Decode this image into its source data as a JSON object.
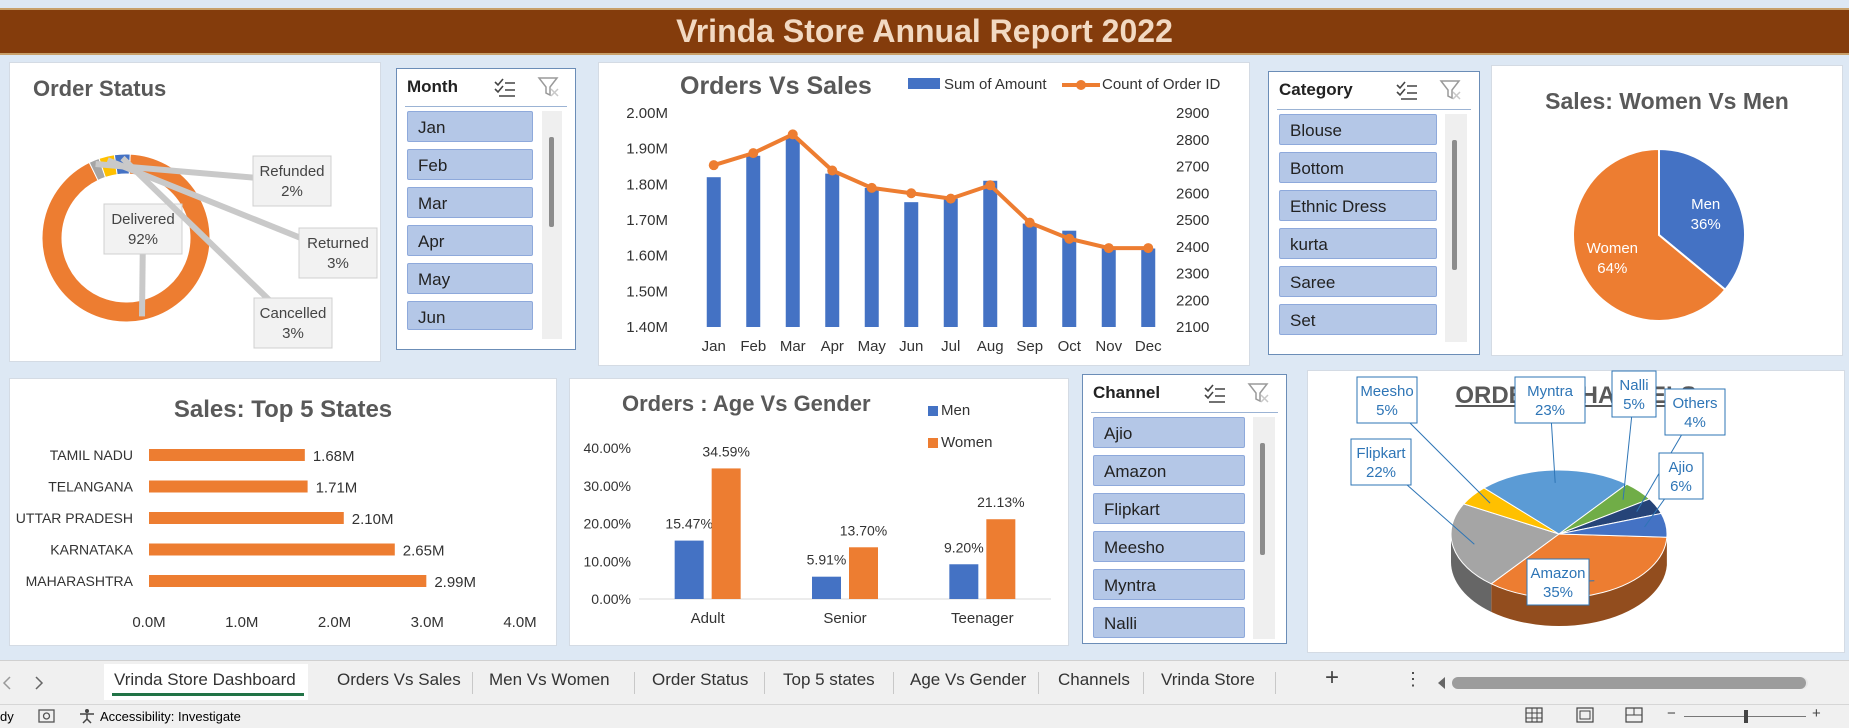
{
  "header": {
    "title": "Vrinda Store Annual Report 2022"
  },
  "order_status": {
    "title": "Order Status",
    "chart_data": {
      "type": "pie",
      "title": "Order Status",
      "labels": [
        "Delivered",
        "Refunded",
        "Returned",
        "Cancelled"
      ],
      "values": [
        92,
        2,
        3,
        3
      ],
      "value_labels": [
        "92%",
        "2%",
        "3%",
        "3%"
      ],
      "colors": [
        "#ed7d31",
        "#a5a5a5",
        "#ffc000",
        "#4472c4"
      ]
    }
  },
  "month_slicer": {
    "title": "Month",
    "items": [
      "Jan",
      "Feb",
      "Mar",
      "Apr",
      "May",
      "Jun"
    ]
  },
  "orders_vs_sales": {
    "title": "Orders Vs Sales",
    "legend": {
      "bar": "Sum of Amount",
      "line": "Count of Order ID"
    },
    "left_ticks": [
      "1.40M",
      "1.50M",
      "1.60M",
      "1.70M",
      "1.80M",
      "1.90M",
      "2.00M"
    ],
    "right_ticks": [
      "2100",
      "2200",
      "2300",
      "2400",
      "2500",
      "2600",
      "2700",
      "2800",
      "2900"
    ],
    "chart_data": {
      "type": "bar",
      "title": "Orders Vs Sales",
      "categories": [
        "Jan",
        "Feb",
        "Mar",
        "Apr",
        "May",
        "Jun",
        "Jul",
        "Aug",
        "Sep",
        "Oct",
        "Nov",
        "Dec"
      ],
      "series": [
        {
          "name": "Sum of Amount",
          "type": "bar",
          "axis": "left",
          "values": [
            1.82,
            1.88,
            1.93,
            1.83,
            1.79,
            1.75,
            1.76,
            1.81,
            1.69,
            1.67,
            1.62,
            1.62
          ]
        },
        {
          "name": "Count of Order ID",
          "type": "line",
          "axis": "right",
          "values": [
            2705,
            2750,
            2820,
            2685,
            2620,
            2600,
            2580,
            2630,
            2490,
            2430,
            2395,
            2395
          ]
        }
      ],
      "ylim_left": [
        1.4,
        2.0
      ],
      "ylim_right": [
        2100,
        2900
      ]
    }
  },
  "category_slicer": {
    "title": "Category",
    "items": [
      "Blouse",
      "Bottom",
      "Ethnic Dress",
      "kurta",
      "Saree",
      "Set"
    ]
  },
  "women_vs_men": {
    "title": "Sales: Women Vs Men",
    "chart_data": {
      "type": "pie",
      "title": "Sales: Women Vs Men",
      "labels": [
        "Men",
        "Women"
      ],
      "values": [
        36,
        64
      ],
      "value_labels": [
        "36%",
        "64%"
      ],
      "colors": [
        "#4472c4",
        "#ed7d31"
      ]
    }
  },
  "top_states": {
    "title": "Sales: Top 5 States",
    "x_ticks": [
      "0.0M",
      "1.0M",
      "2.0M",
      "3.0M",
      "4.0M"
    ],
    "chart_data": {
      "type": "bar",
      "orientation": "horizontal",
      "title": "Sales: Top 5 States",
      "categories": [
        "TAMIL NADU",
        "TELANGANA",
        "UTTAR PRADESH",
        "KARNATAKA",
        "MAHARASHTRA"
      ],
      "values": [
        1.68,
        1.71,
        2.1,
        2.65,
        2.99
      ],
      "value_labels": [
        "1.68M",
        "1.71M",
        "2.10M",
        "2.65M",
        "2.99M"
      ],
      "xlim": [
        0,
        4
      ]
    }
  },
  "age_gender": {
    "title": "Orders : Age Vs Gender",
    "y_ticks": [
      "0.00%",
      "10.00%",
      "20.00%",
      "30.00%",
      "40.00%"
    ],
    "chart_data": {
      "type": "bar",
      "title": "Orders : Age Vs Gender",
      "categories": [
        "Adult",
        "Senior",
        "Teenager"
      ],
      "series": [
        {
          "name": "Men",
          "values": [
            15.47,
            5.91,
            9.2
          ],
          "labels": [
            "15.47%",
            "5.91%",
            "9.20%"
          ]
        },
        {
          "name": "Women",
          "values": [
            34.59,
            13.7,
            21.13
          ],
          "labels": [
            "34.59%",
            "13.70%",
            "21.13%"
          ]
        }
      ],
      "ylim": [
        0,
        40
      ]
    }
  },
  "channel_slicer": {
    "title": "Channel",
    "items": [
      "Ajio",
      "Amazon",
      "Flipkart",
      "Meesho",
      "Myntra",
      "Nalli"
    ]
  },
  "order_channels": {
    "title": "ORDER : CHANNELS",
    "chart_data": {
      "type": "pie",
      "title": "ORDER : CHANNELS",
      "labels": [
        "Amazon",
        "Flipkart",
        "Meesho",
        "Myntra",
        "Nalli",
        "Others",
        "Ajio"
      ],
      "values": [
        35,
        22,
        5,
        23,
        5,
        4,
        6
      ],
      "value_labels": [
        "35%",
        "22%",
        "5%",
        "23%",
        "5%",
        "4%",
        "6%"
      ],
      "colors": [
        "#ed7d31",
        "#a5a5a5",
        "#ffc000",
        "#5b9bd5",
        "#70ad47",
        "#264478",
        "#4472c4"
      ]
    }
  },
  "sheet_tabs": {
    "items": [
      "Vrinda Store Dashboard",
      "Orders Vs Sales",
      "Men Vs Women",
      "Order Status",
      "Top 5 states",
      "Age Vs Gender",
      "Channels",
      "Vrinda Store"
    ],
    "active": "Vrinda Store Dashboard",
    "add_label": "+",
    "more_label": "⋮"
  },
  "status_bar": {
    "ready": "dy",
    "accessibility": "Accessibility: Investigate"
  }
}
